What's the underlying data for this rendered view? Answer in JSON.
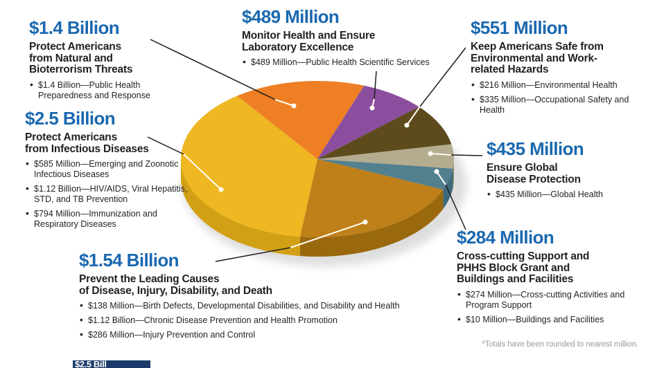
{
  "footnote": "*Totals have been rounded to nearest million.",
  "banner_fragment": "$2.5 Bill",
  "chart_data": {
    "type": "pie",
    "style": "3d-exploded-none",
    "legend_position": "callouts-around-pie",
    "footnote": "*Totals have been rounded to nearest million.",
    "slices": [
      {
        "id": "bioterrorism",
        "label": "Protect Americans from Natural and Bioterrorism Threats",
        "value_text": "$1.4 Billion",
        "value_millions": 1400,
        "color": "#ee7f24",
        "side_color": "#c66318"
      },
      {
        "id": "laboratory",
        "label": "Monitor Health and Ensure Laboratory Excellence",
        "value_text": "$489 Million",
        "value_millions": 489,
        "color": "#8b4e9e",
        "side_color": "#6e3c80"
      },
      {
        "id": "environmental",
        "label": "Keep Americans Safe from Environmental and Work-related Hazards",
        "value_text": "$551 Million",
        "value_millions": 551,
        "color": "#5e4b1d",
        "side_color": "#463811"
      },
      {
        "id": "global",
        "label": "Ensure Global Disease Protection",
        "value_text": "$435 Million",
        "value_millions": 435,
        "color": "#b3ac8e",
        "side_color": "#8e8767"
      },
      {
        "id": "crosscutting",
        "label": "Cross-cutting Support and PHHS Block Grant and Buildings and Facilities",
        "value_text": "$284 Million",
        "value_millions": 284,
        "color": "#53808f",
        "side_color": "#3e6b7b"
      },
      {
        "id": "chronic",
        "label": "Prevent the Leading Causes of Disease, Injury, Disability, and Death",
        "value_text": "$1.54 Billion",
        "value_millions": 1540,
        "color": "#bf8019",
        "side_color": "#9a690e"
      },
      {
        "id": "infectious",
        "label": "Protect Americans from Infectious Diseases",
        "value_text": "$2.5 Billion",
        "value_millions": 2500,
        "color": "#efb722",
        "side_color": "#d2a014"
      }
    ]
  },
  "sections": [
    {
      "amount": "$1.4 Billion",
      "title": "Protect Americans\nfrom Natural and\nBioterrorism Threats",
      "bullets": [
        "$1.4 Billion—Public Health Preparedness and Response"
      ]
    },
    {
      "amount": "$2.5 Billion",
      "title": "Protect Americans\nfrom Infectious Diseases",
      "bullets": [
        "$585 Million—Emerging and Zoonotic Infectious Diseases",
        "$1.12 Billion—HIV/AIDS, Viral Hepatitis, STD, and TB Prevention",
        "$794 Million—Immunization and Respiratory Diseases"
      ]
    },
    {
      "amount": "$489 Million",
      "title": "Monitor Health and Ensure\nLaboratory Excellence",
      "bullets": [
        "$489 Million—Public Health Scientific Services"
      ]
    },
    {
      "amount": "$551 Million",
      "title": "Keep Americans Safe from\nEnvironmental and Work-\nrelated Hazards",
      "bullets": [
        "$216 Million—Environmental Health",
        "$335 Million—Occupational Safety and Health"
      ]
    },
    {
      "amount": "$435 Million",
      "title": "Ensure Global\nDisease Protection",
      "bullets": [
        "$435 Million—Global Health"
      ]
    },
    {
      "amount": "$284 Million",
      "title": "Cross-cutting Support and\nPHHS Block Grant and\nBuildings and Facilities",
      "bullets": [
        "$274 Million—Cross-cutting Activities and Program Support",
        "$10 Million—Buildings and Facilities"
      ]
    },
    {
      "amount": "$1.54 Billion",
      "title": "Prevent the Leading Causes\nof Disease, Injury, Disability, and Death",
      "bullets": [
        "$138 Million—Birth Defects, Developmental Disabilities, and Disability and Health",
        "$1.12 Billion—Chronic Disease Prevention and Health Promotion",
        "$286 Million—Injury Prevention and Control"
      ]
    }
  ]
}
